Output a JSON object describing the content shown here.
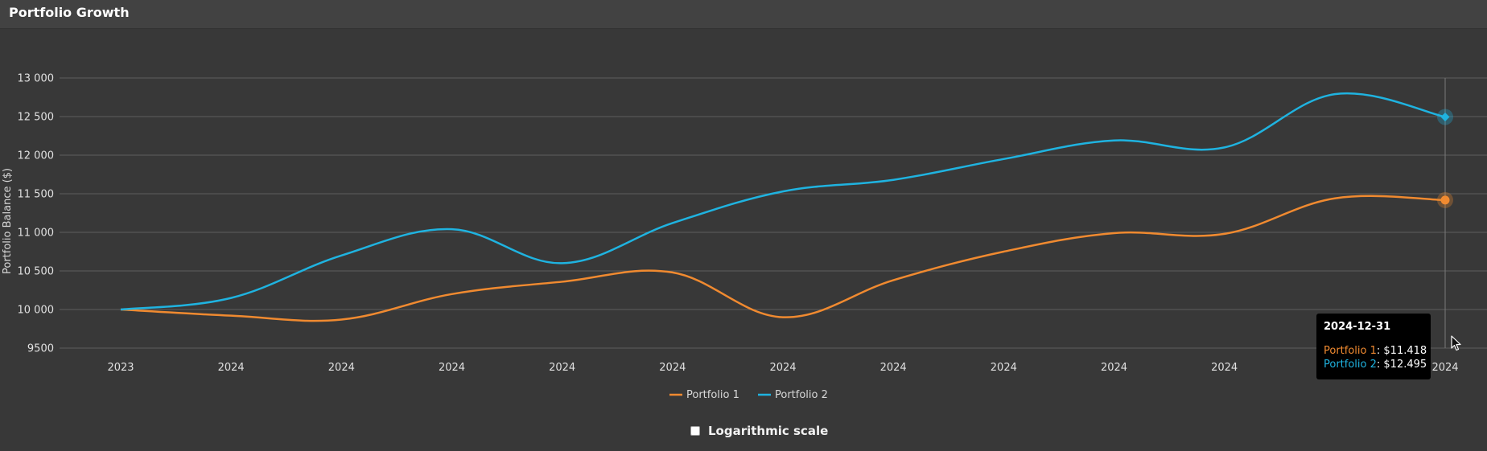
{
  "header": {
    "title": "Portfolio Growth"
  },
  "chart_data": {
    "type": "line",
    "title": "",
    "xlabel": "",
    "ylabel": "Portfolio Balance ($)",
    "ylim": [
      9500,
      13000
    ],
    "y_ticks": [
      "13 000",
      "12 500",
      "12 000",
      "11 500",
      "11 000",
      "10 500",
      "10 000",
      "9500"
    ],
    "y_tick_values": [
      13000,
      12500,
      12000,
      11500,
      11000,
      10500,
      10000,
      9500
    ],
    "categories": [
      "2023",
      "2024",
      "2024",
      "2024",
      "2024",
      "2024",
      "2024",
      "2024",
      "2024",
      "2024",
      "2024",
      "2024",
      "2024"
    ],
    "series": [
      {
        "name": "Portfolio 1",
        "color": "#f08a30",
        "values": [
          10000,
          9920,
          9870,
          10200,
          10360,
          10480,
          9900,
          10380,
          10750,
          10990,
          10980,
          11440,
          11418
        ]
      },
      {
        "name": "Portfolio 2",
        "color": "#1fb3e0",
        "values": [
          10000,
          10150,
          10700,
          11040,
          10600,
          11120,
          11530,
          11680,
          11950,
          12190,
          12100,
          12790,
          12495
        ]
      }
    ],
    "grid": true,
    "legend": "bottom-center",
    "tooltip": {
      "date": "2024-12-31",
      "rows": [
        {
          "name": "Portfolio 1",
          "value": "$11.418",
          "color": "#f08a30"
        },
        {
          "name": "Portfolio 2",
          "value": "$12.495",
          "color": "#1fb3e0"
        }
      ]
    }
  },
  "controls": {
    "log_scale_label": "Logarithmic scale",
    "log_scale_checked": false
  }
}
